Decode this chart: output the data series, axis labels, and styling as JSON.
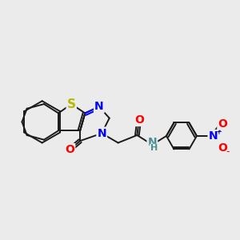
{
  "background_color": "#ebebeb",
  "bond_color": "#1a1a1a",
  "bond_width": 1.4,
  "S_color": "#b8b800",
  "N_color": "#0000ff",
  "O_color": "#ff0000",
  "NH_color": "#4a9090",
  "fig_width": 3.0,
  "fig_height": 3.0,
  "dpi": 100,
  "xlim": [
    0.0,
    6.2
  ],
  "ylim": [
    0.5,
    3.5
  ]
}
